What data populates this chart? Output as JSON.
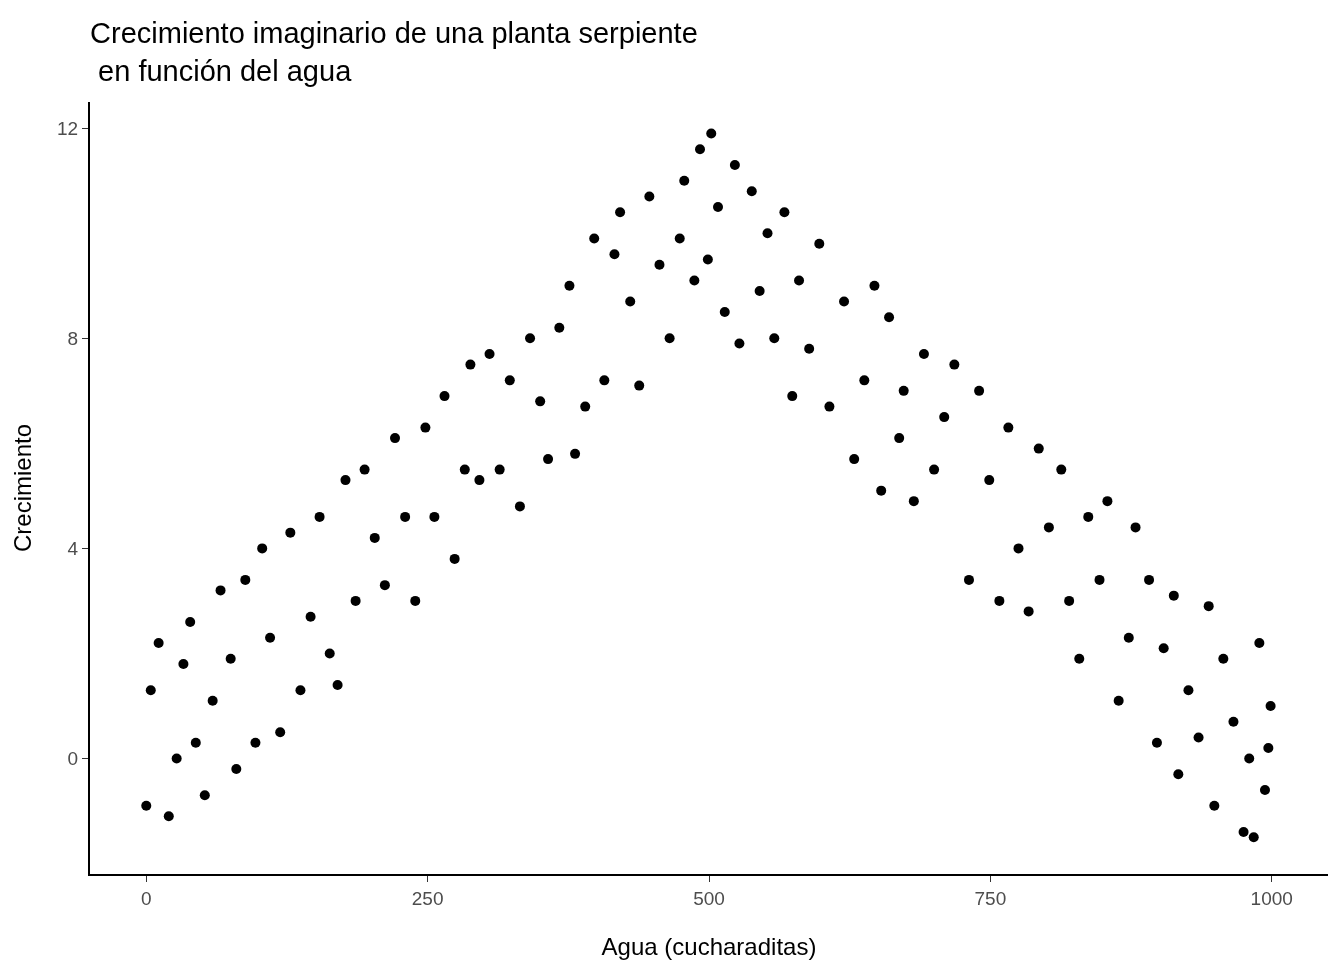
{
  "chart_data": {
    "type": "scatter",
    "title": "Crecimiento imaginario de una planta serpiente\n en función del agua",
    "xlabel": "Agua (cucharaditas)",
    "ylabel": "Crecimiento",
    "x": [
      0,
      4,
      11,
      20,
      27,
      33,
      39,
      44,
      52,
      59,
      66,
      75,
      80,
      88,
      97,
      103,
      110,
      119,
      128,
      137,
      146,
      154,
      163,
      170,
      177,
      186,
      194,
      203,
      212,
      221,
      230,
      239,
      248,
      256,
      265,
      274,
      283,
      288,
      296,
      305,
      314,
      323,
      332,
      341,
      350,
      357,
      367,
      376,
      381,
      390,
      398,
      407,
      416,
      421,
      430,
      438,
      447,
      456,
      465,
      474,
      478,
      487,
      492,
      499,
      502,
      508,
      514,
      523,
      527,
      538,
      545,
      552,
      558,
      567,
      574,
      580,
      589,
      598,
      607,
      620,
      629,
      638,
      647,
      653,
      660,
      669,
      673,
      682,
      691,
      700,
      709,
      718,
      731,
      740,
      749,
      758,
      766,
      775,
      784,
      793,
      802,
      813,
      820,
      829,
      837,
      847,
      854,
      864,
      873,
      879,
      891,
      898,
      904,
      913,
      917,
      926,
      935,
      944,
      949,
      957,
      966,
      975,
      980,
      984,
      989,
      994,
      997,
      999
    ],
    "values": [
      -0.9,
      1.3,
      2.2,
      -1.1,
      0.0,
      1.8,
      2.6,
      0.3,
      -0.7,
      1.1,
      3.2,
      1.9,
      -0.2,
      3.4,
      0.3,
      4.0,
      2.3,
      0.5,
      4.3,
      1.3,
      2.7,
      4.6,
      2.0,
      1.4,
      5.3,
      3.0,
      5.5,
      4.2,
      3.3,
      6.1,
      4.6,
      3.0,
      6.3,
      4.6,
      6.9,
      3.8,
      5.5,
      7.5,
      5.3,
      7.7,
      5.5,
      7.2,
      4.8,
      8.0,
      6.8,
      5.7,
      8.2,
      9.0,
      5.8,
      6.7,
      9.9,
      7.2,
      9.6,
      10.4,
      8.7,
      7.1,
      10.7,
      9.4,
      8.0,
      9.9,
      11.0,
      9.1,
      11.6,
      9.5,
      11.9,
      10.5,
      8.5,
      11.3,
      7.9,
      10.8,
      8.9,
      10.0,
      8.0,
      10.4,
      6.9,
      9.1,
      7.8,
      9.8,
      6.7,
      8.7,
      5.7,
      7.2,
      9.0,
      5.1,
      8.4,
      6.1,
      7.0,
      4.9,
      7.7,
      5.5,
      6.5,
      7.5,
      3.4,
      7.0,
      5.3,
      3.0,
      6.3,
      4.0,
      2.8,
      5.9,
      4.4,
      5.5,
      3.0,
      1.9,
      4.6,
      3.4,
      4.9,
      1.1,
      2.3,
      4.4,
      3.4,
      0.3,
      2.1,
      3.1,
      -0.3,
      1.3,
      0.4,
      2.9,
      -0.9,
      1.9,
      0.7,
      -1.4,
      0.0,
      -1.5,
      2.2,
      -0.6,
      0.2,
      1.0
    ],
    "color": "#000000",
    "marker": "circle",
    "xlim": [
      -50,
      1050
    ],
    "ylim": [
      -2.2,
      12.5
    ],
    "xticks": [
      0,
      250,
      500,
      750,
      1000
    ],
    "yticks": [
      0,
      4,
      8,
      12
    ],
    "grid": false,
    "legend": false
  }
}
